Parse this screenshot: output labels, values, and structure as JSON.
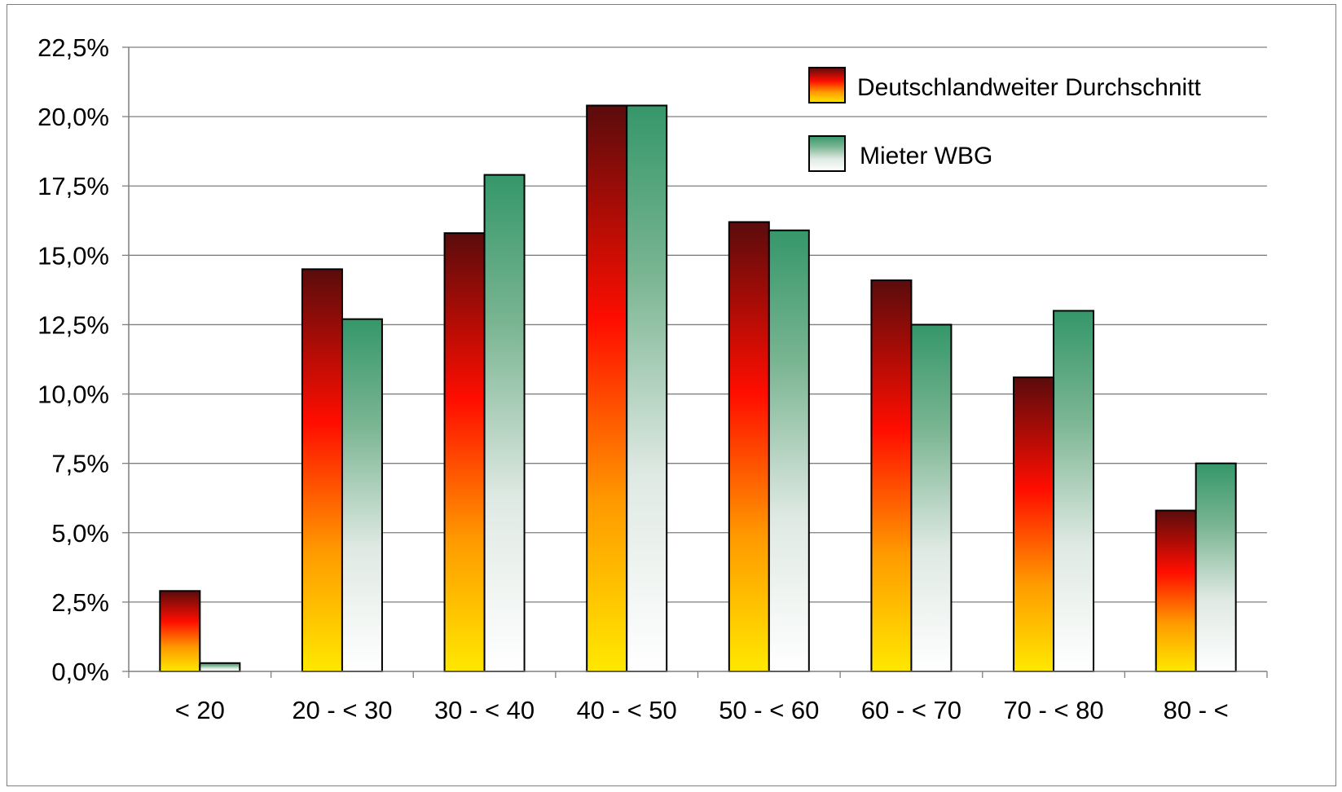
{
  "chart_data": {
    "type": "bar",
    "categories": [
      "< 20",
      "20 - < 30",
      "30 - < 40",
      "40 - < 50",
      "50 - < 60",
      "60 - < 70",
      "70 - < 80",
      "80 - <"
    ],
    "series": [
      {
        "name": "Deutschlandweiter Durchschnitt",
        "values": [
          2.9,
          14.5,
          15.8,
          20.4,
          16.2,
          14.1,
          10.6,
          5.8
        ],
        "color": "#e30000"
      },
      {
        "name": "Mieter WBG",
        "values": [
          0.3,
          12.7,
          17.9,
          20.4,
          15.9,
          12.5,
          13.0,
          7.5
        ],
        "color": "#399a6a"
      }
    ],
    "ylim": [
      0,
      22.5
    ],
    "yticks": [
      "0,0%",
      "2,5%",
      "5,0%",
      "7,5%",
      "10,0%",
      "12,5%",
      "15,0%",
      "17,5%",
      "20,0%",
      "22,5%"
    ],
    "ytick_values": [
      0,
      2.5,
      5,
      7.5,
      10,
      12.5,
      15,
      17.5,
      20,
      22.5
    ],
    "grid": true,
    "legend_position": "top-right",
    "title": "",
    "xlabel": "",
    "ylabel": ""
  }
}
